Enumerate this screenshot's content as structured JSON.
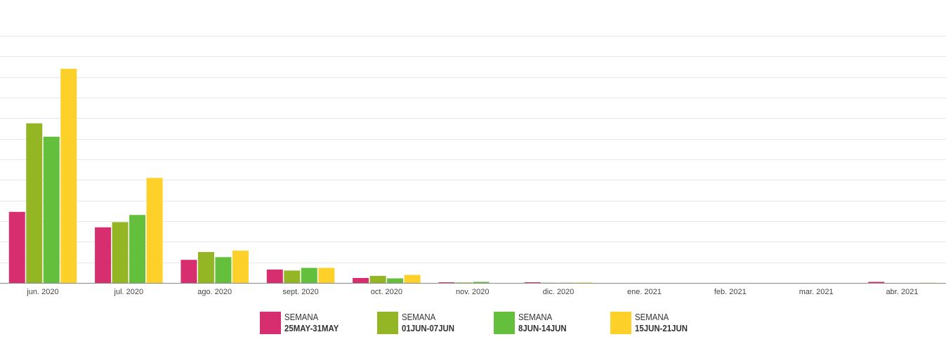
{
  "chart_data": {
    "type": "bar",
    "categories": [
      "jun. 2020",
      "jul. 2020",
      "ago. 2020",
      "sept. 2020",
      "oct. 2020",
      "nov. 2020",
      "dic. 2020",
      "ene. 2021",
      "feb. 2021",
      "mar. 2021",
      "abr. 2021"
    ],
    "series": [
      {
        "name_line1": "SEMANA",
        "name_line2": "25MAY-31MAY",
        "color": "#D62E6E",
        "values": [
          34.5,
          27,
          11.2,
          6.5,
          2.4,
          0.3,
          0.3,
          0,
          0,
          0,
          0.5
        ]
      },
      {
        "name_line1": "SEMANA",
        "name_line2": "01JUN-07JUN",
        "color": "#94B624",
        "values": [
          77.5,
          29.5,
          15,
          6,
          3.4,
          0.2,
          0.1,
          0,
          0,
          0,
          0
        ]
      },
      {
        "name_line1": "SEMANA",
        "name_line2": "8JUN-14JUN",
        "color": "#63BF3C",
        "values": [
          71,
          33,
          12.5,
          7.3,
          2.2,
          0.5,
          0.1,
          0,
          0,
          0,
          0
        ]
      },
      {
        "name_line1": "SEMANA",
        "name_line2": "15JUN-21JUN",
        "color": "#FDD12A",
        "values": [
          104,
          51,
          15.7,
          7.3,
          3.9,
          0,
          0.2,
          0,
          0,
          0,
          0.1
        ]
      }
    ],
    "ylim": [
      0,
      120
    ],
    "ytick_step": 10,
    "grid": true,
    "legend_position": "bottom"
  }
}
